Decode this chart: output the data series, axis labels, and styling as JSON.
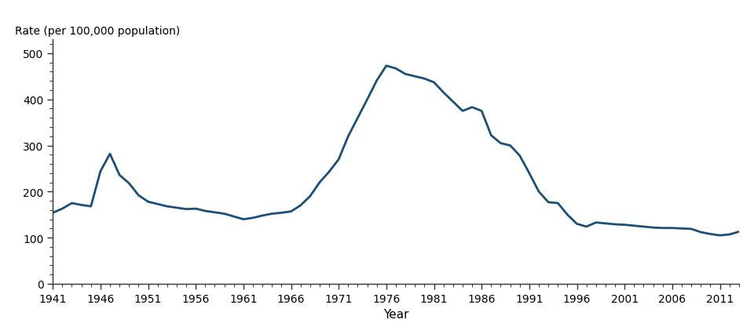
{
  "years": [
    1941,
    1942,
    1943,
    1944,
    1945,
    1946,
    1947,
    1948,
    1949,
    1950,
    1951,
    1952,
    1953,
    1954,
    1955,
    1956,
    1957,
    1958,
    1959,
    1960,
    1961,
    1962,
    1963,
    1964,
    1965,
    1966,
    1967,
    1968,
    1969,
    1970,
    1971,
    1972,
    1973,
    1974,
    1975,
    1976,
    1977,
    1978,
    1979,
    1980,
    1981,
    1982,
    1983,
    1984,
    1985,
    1986,
    1987,
    1988,
    1989,
    1990,
    1991,
    1992,
    1993,
    1994,
    1995,
    1996,
    1997,
    1998,
    1999,
    2000,
    2001,
    2002,
    2003,
    2004,
    2005,
    2006,
    2007,
    2008,
    2009,
    2010,
    2011,
    2012,
    2013
  ],
  "values": [
    154,
    163,
    175,
    171,
    168,
    244,
    282,
    236,
    218,
    192,
    178,
    173,
    168,
    165,
    162,
    163,
    158,
    155,
    152,
    146,
    140,
    143,
    148,
    152,
    154,
    157,
    170,
    190,
    220,
    243,
    270,
    320,
    360,
    400,
    441,
    473,
    467,
    455,
    450,
    445,
    437,
    415,
    395,
    375,
    383,
    375,
    322,
    305,
    300,
    278,
    240,
    200,
    177,
    175,
    150,
    130,
    124,
    133,
    131,
    129,
    128,
    126,
    124,
    122,
    121,
    121,
    120,
    119,
    112,
    108,
    105,
    107,
    113
  ],
  "line_color": "#1a4f7a",
  "line_width": 2.0,
  "ylabel": "Rate (per 100,000 population)",
  "xlabel": "Year",
  "ylim": [
    0,
    530
  ],
  "xlim": [
    1941,
    2013
  ],
  "yticks": [
    0,
    100,
    200,
    300,
    400,
    500
  ],
  "xticks": [
    1941,
    1946,
    1951,
    1956,
    1961,
    1966,
    1971,
    1976,
    1981,
    1986,
    1991,
    1996,
    2001,
    2006,
    2011
  ],
  "background_color": "#ffffff",
  "ylabel_fontsize": 10,
  "xlabel_fontsize": 11,
  "tick_fontsize": 10,
  "spine_color": "#333333"
}
